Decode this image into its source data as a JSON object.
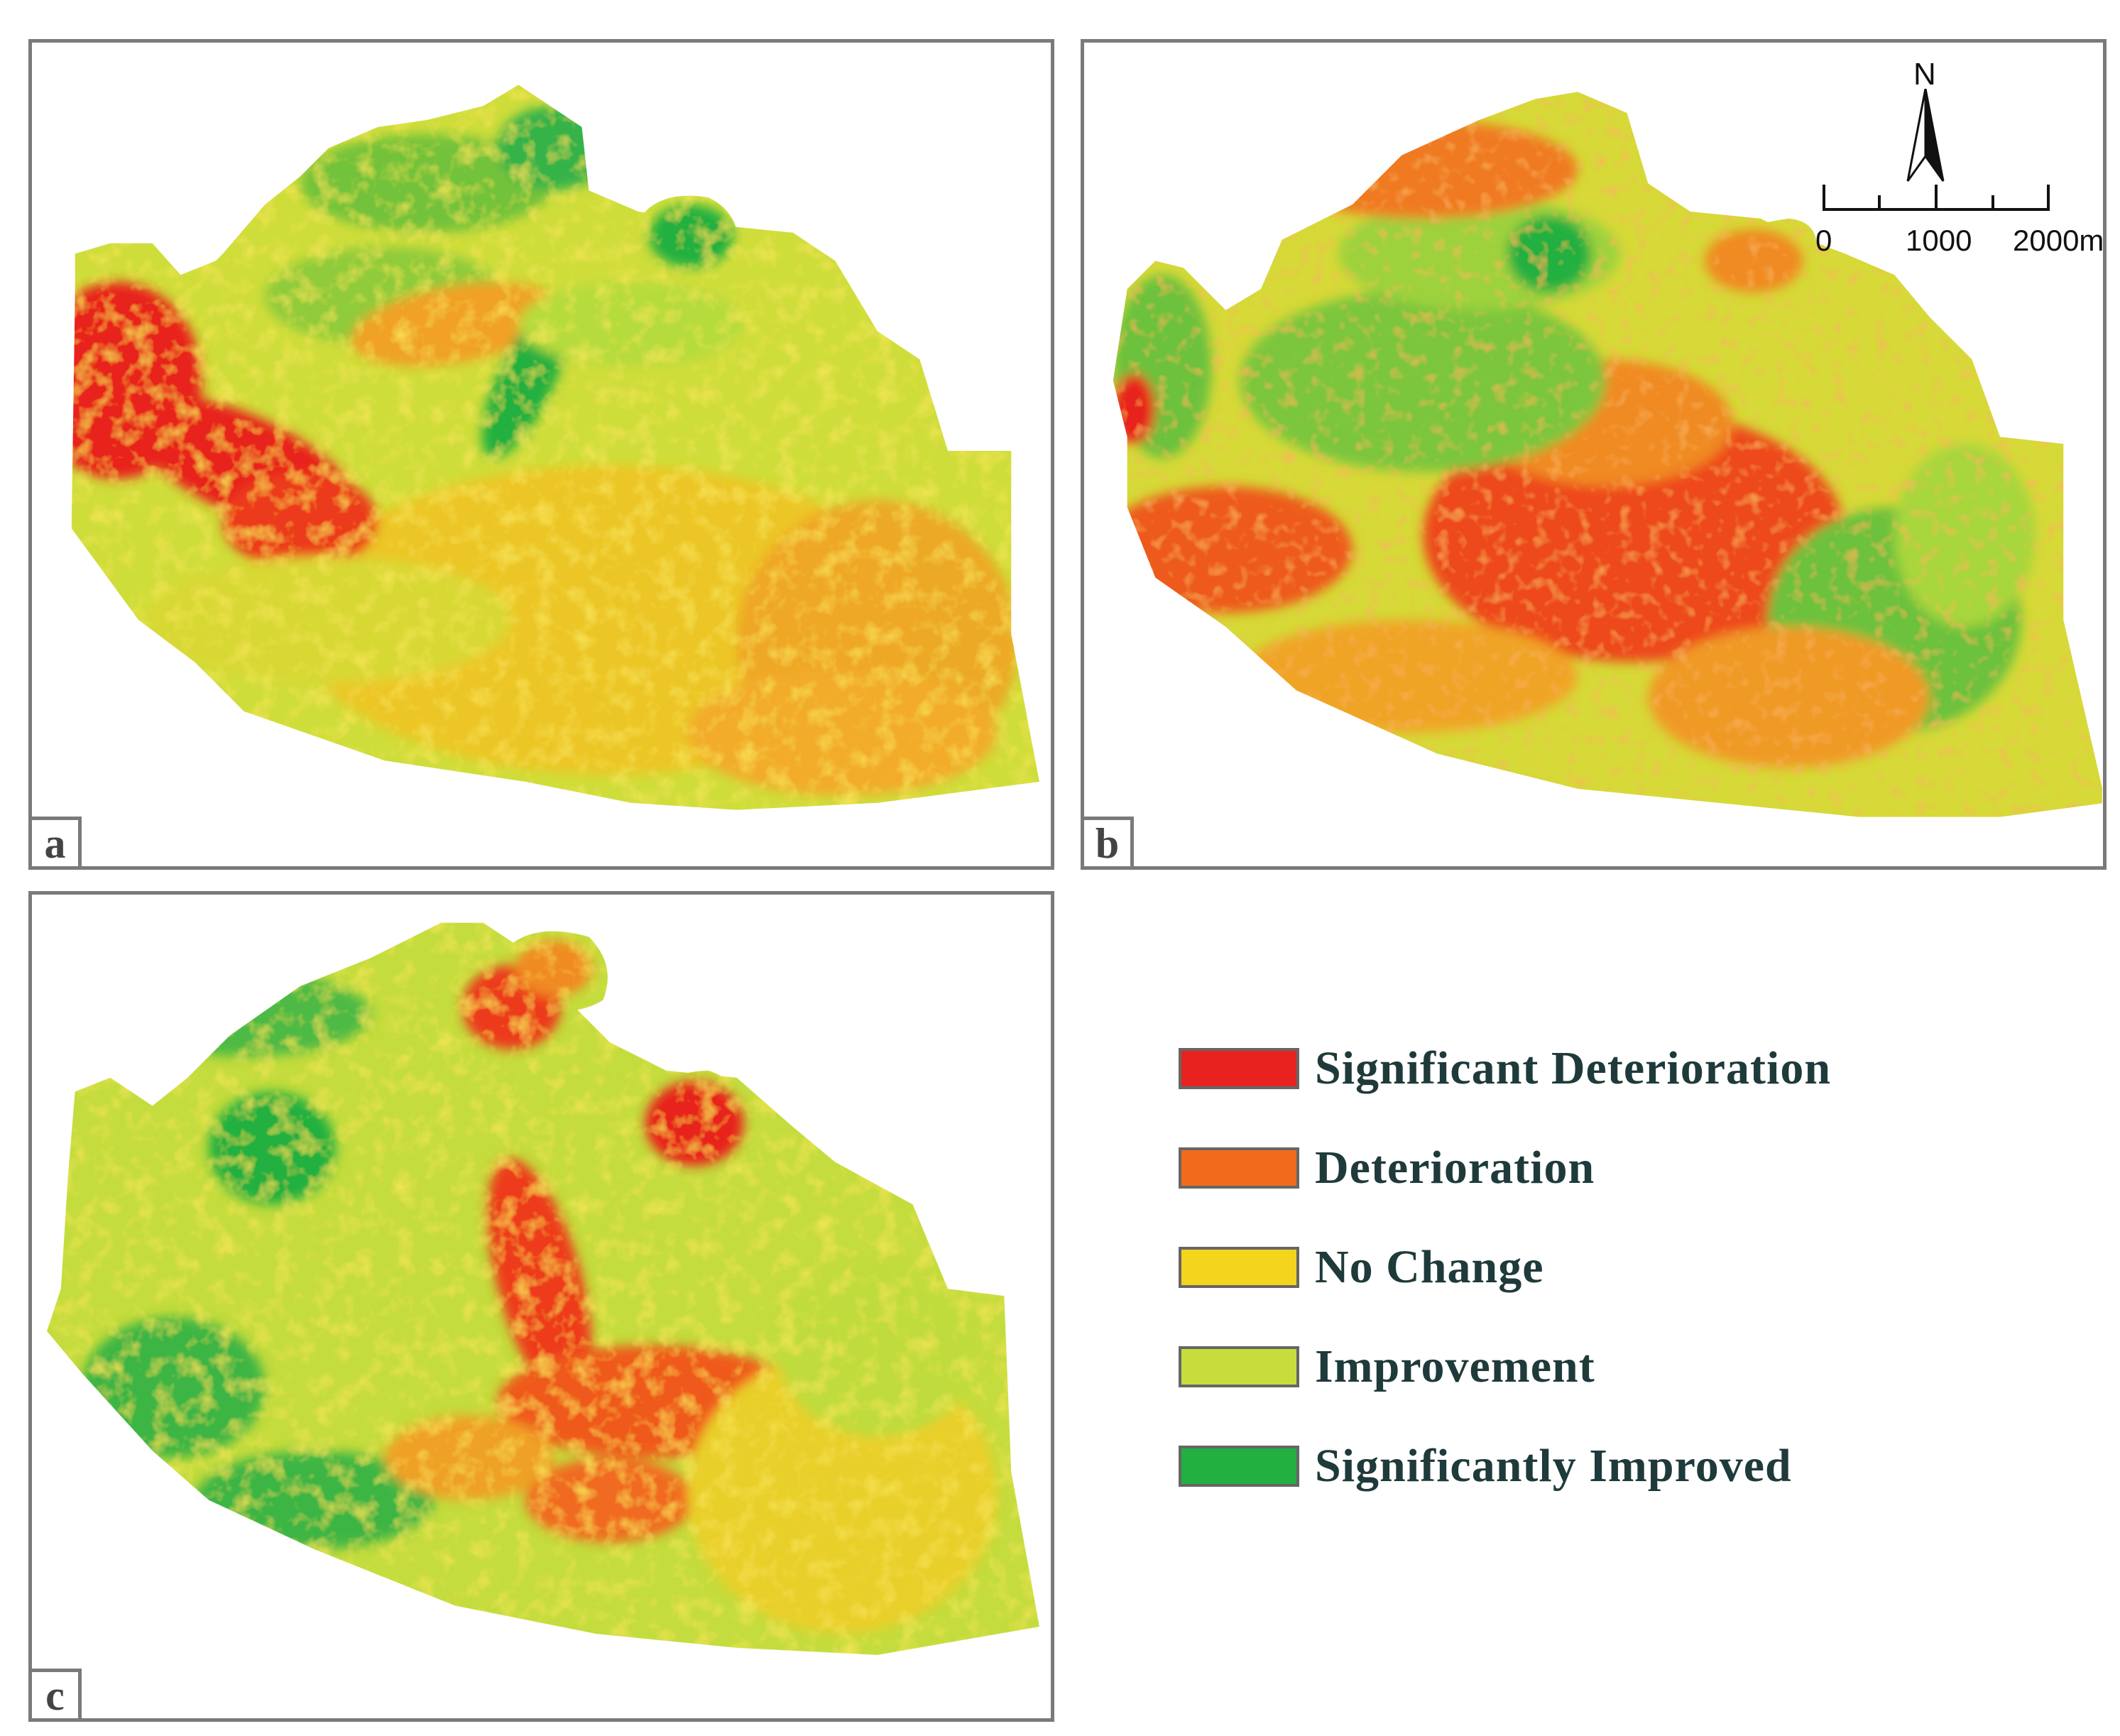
{
  "panels": [
    {
      "id": "a",
      "label": "a"
    },
    {
      "id": "b",
      "label": "b"
    },
    {
      "id": "c",
      "label": "c"
    }
  ],
  "north_arrow": {
    "letter": "N"
  },
  "scale_bar": {
    "labels": [
      "0",
      "1000",
      "2000m"
    ]
  },
  "legend": {
    "items": [
      {
        "label": "Significant Deterioration",
        "color": "#e8231f"
      },
      {
        "label": "Deterioration",
        "color": "#f26a1b"
      },
      {
        "label": "No Change",
        "color": "#f4d41c"
      },
      {
        "label": "Improvement",
        "color": "#c6dd3b"
      },
      {
        "label": "Significantly Improved",
        "color": "#22b040"
      }
    ]
  }
}
